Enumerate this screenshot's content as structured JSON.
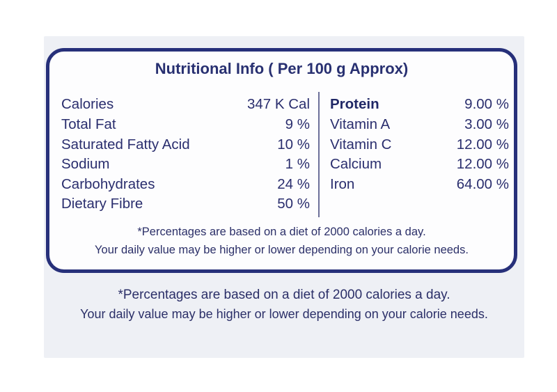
{
  "title": "Nutritional Info ( Per 100 g Approx)",
  "left_nutrients": [
    {
      "name": "Calories",
      "value": "347 K Cal"
    },
    {
      "name": "Total Fat",
      "value": "9 %"
    },
    {
      "name": "Saturated Fatty Acid",
      "value": "10 %"
    },
    {
      "name": "Sodium",
      "value": "1 %"
    },
    {
      "name": "Carbohydrates",
      "value": "24 %"
    },
    {
      "name": "Dietary Fibre",
      "value": "50 %"
    }
  ],
  "right_nutrients": [
    {
      "name": "Protein",
      "value": "9.00 %"
    },
    {
      "name": "Vitamin A",
      "value": "3.00 %"
    },
    {
      "name": "Vitamin C",
      "value": "12.00 %"
    },
    {
      "name": "Calcium",
      "value": "12.00 %"
    },
    {
      "name": "Iron",
      "value": "64.00 %"
    }
  ],
  "card_note": {
    "line1": "*Percentages are based on a diet of 2000 calories a day.",
    "line2": "Your daily value may be higher or lower depending on your calorie needs."
  },
  "outer_note": {
    "line1": "*Percentages are based on a diet of 2000 calories a day.",
    "line2": "Your daily value may be higher or lower depending on your calorie needs."
  },
  "colors": {
    "border": "#27307a",
    "text": "#2a2e6e",
    "panel": "#eef0f5"
  }
}
